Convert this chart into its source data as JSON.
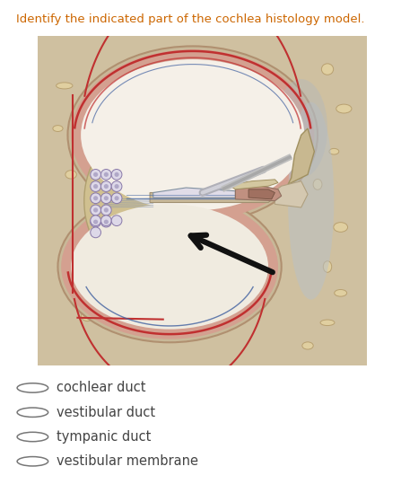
{
  "title": "Identify the indicated part of the cochlea histology model.",
  "title_color": "#cc6600",
  "title_fontsize": 9.5,
  "bg_color": "#ffffff",
  "image_bg_outer": "#d4c4a0",
  "image_bg_inner": "#e8dcc0",
  "options": [
    "cochlear duct",
    "vestibular duct",
    "tympanic duct",
    "vestibular membrane"
  ],
  "option_colors": [
    "#555555",
    "#555555",
    "#555555",
    "#555555"
  ],
  "option_fontsize": 10.5,
  "figsize": [
    4.47,
    5.39
  ],
  "dpi": 100,
  "lumen_color": "#f8f4ee",
  "wall_color": "#c87860",
  "red_line_color": "#c03030",
  "blue_line_color": "#6080a0",
  "bone_color": "#d8c8a0",
  "ganglion_color": "#c8c0d8",
  "arrow_color": "#111111"
}
